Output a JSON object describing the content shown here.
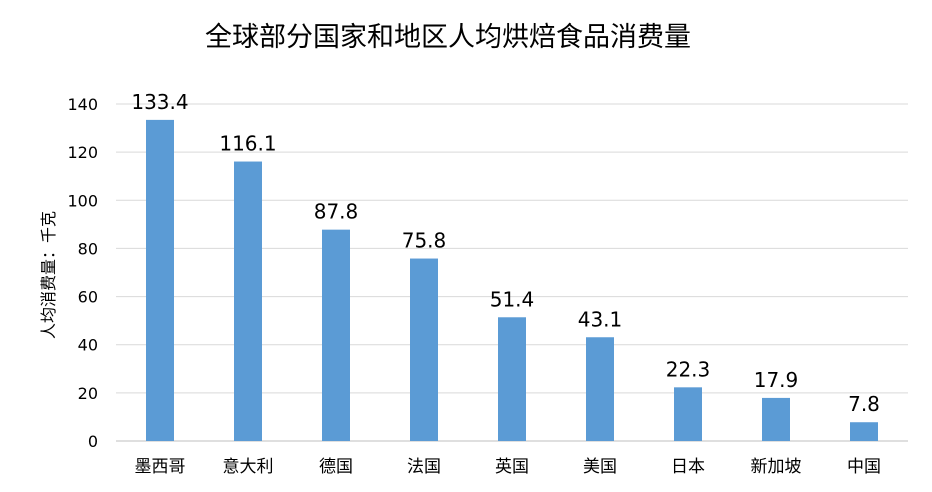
{
  "chart_data": {
    "type": "bar",
    "title": "全球部分国家和地区人均烘焙食品消费量",
    "ylabel": "人均消费量：千克",
    "xlabel": "",
    "categories": [
      "墨西哥",
      "意大利",
      "德国",
      "法国",
      "英国",
      "美国",
      "日本",
      "新加坡",
      "中国"
    ],
    "values": [
      133.4,
      116.1,
      87.8,
      75.8,
      51.4,
      43.1,
      22.3,
      17.9,
      7.8
    ],
    "value_labels": [
      "133.4",
      "116.1",
      "87.8",
      "75.8",
      "51.4",
      "43.1",
      "22.3",
      "17.9",
      "7.8"
    ],
    "ylim": [
      0,
      140
    ],
    "yticks": [
      0,
      20,
      40,
      60,
      80,
      100,
      120,
      140
    ],
    "grid": true,
    "legend": "none",
    "bar_color": "#5b9bd5",
    "grid_color": "#d9d9d9",
    "text_color": "#000000"
  }
}
